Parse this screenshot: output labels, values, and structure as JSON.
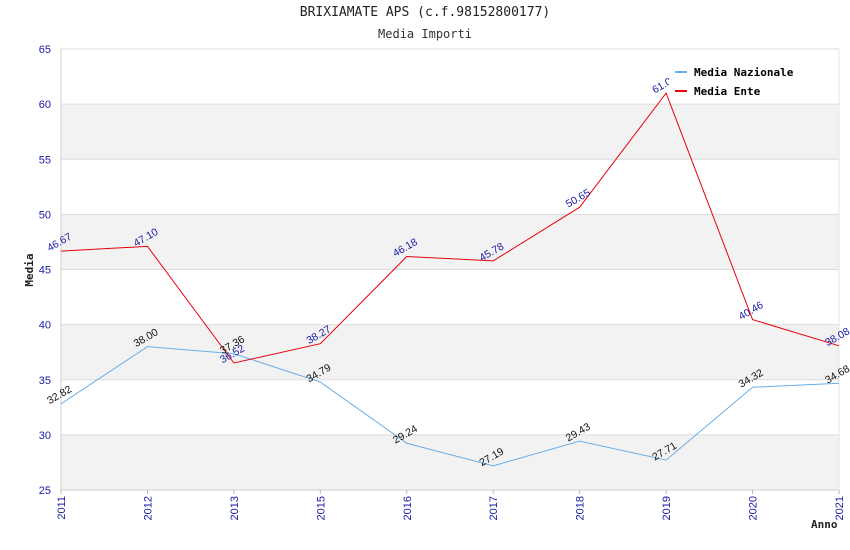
{
  "chart_data": {
    "type": "line",
    "title": "BRIXIAMATE APS (c.f.98152800177)",
    "subtitle": "Media Importi",
    "xlabel": "Anno",
    "ylabel": "Media",
    "categories": [
      "2011",
      "2012",
      "2013",
      "2015",
      "2016",
      "2017",
      "2018",
      "2019",
      "2020",
      "2021"
    ],
    "ylim": [
      25,
      65
    ],
    "yticks": [
      25,
      30,
      35,
      40,
      45,
      50,
      55,
      60,
      65
    ],
    "grid": true,
    "legend_position": "top-right",
    "series": [
      {
        "name": "Media Nazionale",
        "color": "#6aaee8",
        "values": [
          32.82,
          38.0,
          37.36,
          34.79,
          29.24,
          27.19,
          29.43,
          27.71,
          34.32,
          34.68
        ],
        "labels": [
          "32.82",
          "38.00",
          "37.36",
          "34.79",
          "29.24",
          "27.19",
          "29.43",
          "27.71",
          "34.32",
          "34.68"
        ]
      },
      {
        "name": "Media Ente",
        "color": "#e8000b",
        "values": [
          46.67,
          47.1,
          36.52,
          38.27,
          46.18,
          45.78,
          50.65,
          61.0,
          40.46,
          38.08
        ],
        "labels": [
          "46.67",
          "47.10",
          "36.52",
          "38.27",
          "46.18",
          "45.78",
          "50.65",
          "61.00",
          "40.46",
          "38.08"
        ]
      }
    ]
  }
}
